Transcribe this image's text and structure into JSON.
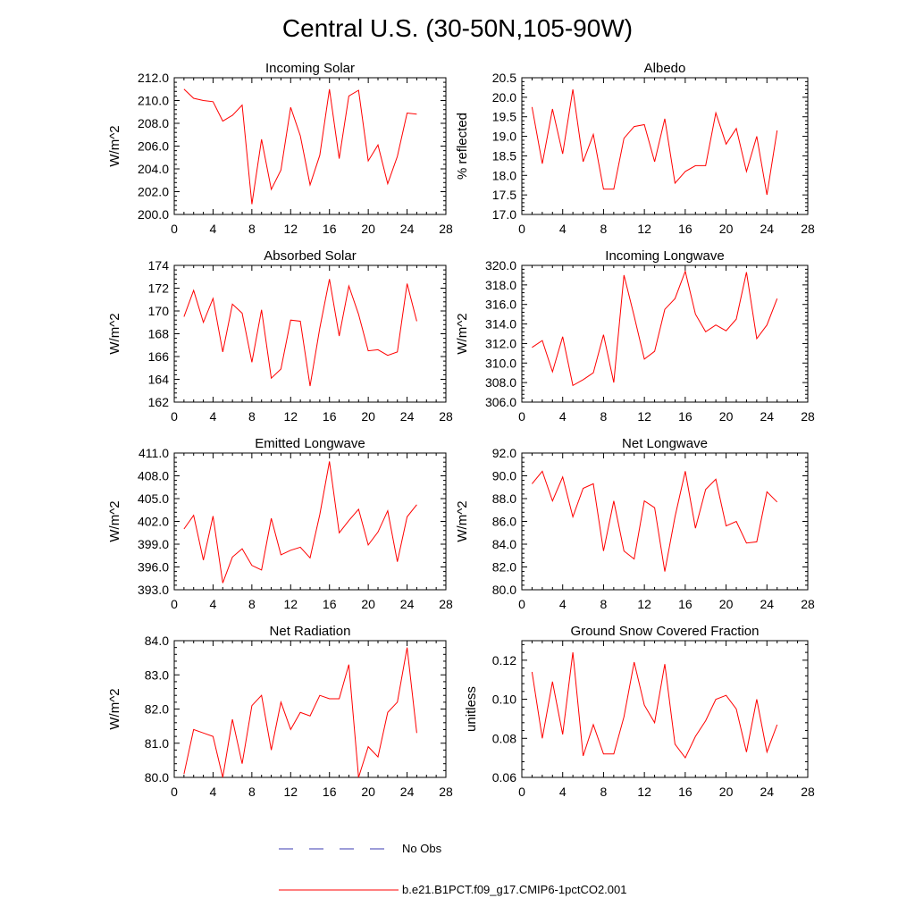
{
  "figure": {
    "title": "Central U.S. (30-50N,105-90W)"
  },
  "legend": {
    "items": [
      {
        "label": "No Obs",
        "style": "dashed",
        "color": "#3b3bb0"
      },
      {
        "label": "b.e21.B1PCT.f09_g17.CMIP6-1pctCO2.001",
        "style": "solid",
        "color": "#ff0000"
      }
    ]
  },
  "colors": {
    "series": "#ff0000",
    "axis": "#000000"
  },
  "chart_data": [
    {
      "type": "line",
      "title": "Incoming Solar",
      "xlabel": "",
      "ylabel": "W/m^2",
      "xlim": [
        0,
        28
      ],
      "ylim": [
        200,
        212
      ],
      "xticks": [
        0,
        4,
        8,
        12,
        16,
        20,
        24,
        28
      ],
      "yticks": [
        200,
        202,
        204,
        206,
        208,
        210,
        212
      ],
      "ytick_labels": [
        "200.0",
        "202.0",
        "204.0",
        "206.0",
        "208.0",
        "210.0",
        "212.0"
      ],
      "x": [
        1,
        2,
        3,
        4,
        5,
        6,
        7,
        8,
        9,
        10,
        11,
        12,
        13,
        14,
        15,
        16,
        17,
        18,
        19,
        20,
        21,
        22,
        23,
        24,
        25
      ],
      "series": [
        {
          "name": "b.e21.B1PCT.f09_g17.CMIP6-1pctCO2.001",
          "values": [
            211.0,
            210.2,
            210.0,
            209.9,
            208.2,
            208.7,
            209.6,
            200.9,
            206.6,
            202.2,
            203.9,
            209.4,
            206.9,
            202.6,
            205.2,
            211.0,
            204.9,
            210.4,
            210.9,
            204.7,
            206.1,
            202.7,
            205.1,
            208.9,
            208.8
          ]
        }
      ]
    },
    {
      "type": "line",
      "title": "Albedo",
      "xlabel": "",
      "ylabel": "% reflected",
      "xlim": [
        0,
        28
      ],
      "ylim": [
        17,
        20.5
      ],
      "xticks": [
        0,
        4,
        8,
        12,
        16,
        20,
        24,
        28
      ],
      "yticks": [
        17,
        17.5,
        18,
        18.5,
        19,
        19.5,
        20,
        20.5
      ],
      "ytick_labels": [
        "17.0",
        "17.5",
        "18.0",
        "18.5",
        "19.0",
        "19.5",
        "20.0",
        "20.5"
      ],
      "x": [
        1,
        2,
        3,
        4,
        5,
        6,
        7,
        8,
        9,
        10,
        11,
        12,
        13,
        14,
        15,
        16,
        17,
        18,
        19,
        20,
        21,
        22,
        23,
        24,
        25
      ],
      "series": [
        {
          "name": "b.e21.B1PCT.f09_g17.CMIP6-1pctCO2.001",
          "values": [
            19.75,
            18.3,
            19.7,
            18.55,
            20.2,
            18.35,
            19.05,
            17.65,
            17.65,
            18.95,
            19.25,
            19.3,
            18.35,
            19.45,
            17.8,
            18.1,
            18.25,
            18.25,
            19.6,
            18.8,
            19.2,
            18.1,
            19.0,
            17.5,
            19.15
          ]
        }
      ]
    },
    {
      "type": "line",
      "title": "Absorbed Solar",
      "xlabel": "",
      "ylabel": "W/m^2",
      "xlim": [
        0,
        28
      ],
      "ylim": [
        162,
        174
      ],
      "xticks": [
        0,
        4,
        8,
        12,
        16,
        20,
        24,
        28
      ],
      "yticks": [
        162,
        164,
        166,
        168,
        170,
        172,
        174
      ],
      "ytick_labels": [
        "162",
        "164",
        "166",
        "168",
        "170",
        "172",
        "174"
      ],
      "x": [
        1,
        2,
        3,
        4,
        5,
        6,
        7,
        8,
        9,
        10,
        11,
        12,
        13,
        14,
        15,
        16,
        17,
        18,
        19,
        20,
        21,
        22,
        23,
        24,
        25
      ],
      "series": [
        {
          "name": "b.e21.B1PCT.f09_g17.CMIP6-1pctCO2.001",
          "values": [
            169.5,
            171.8,
            169.0,
            171.1,
            166.4,
            170.6,
            169.8,
            165.5,
            170.1,
            164.1,
            164.9,
            169.2,
            169.1,
            163.4,
            168.5,
            172.8,
            167.8,
            172.2,
            169.7,
            166.5,
            166.6,
            166.1,
            166.4,
            172.4,
            169.1
          ]
        }
      ]
    },
    {
      "type": "line",
      "title": "Incoming Longwave",
      "xlabel": "",
      "ylabel": "W/m^2",
      "xlim": [
        0,
        28
      ],
      "ylim": [
        306,
        320
      ],
      "xticks": [
        0,
        4,
        8,
        12,
        16,
        20,
        24,
        28
      ],
      "yticks": [
        306,
        308,
        310,
        312,
        314,
        316,
        318,
        320
      ],
      "ytick_labels": [
        "306.0",
        "308.0",
        "310.0",
        "312.0",
        "314.0",
        "316.0",
        "318.0",
        "320.0"
      ],
      "x": [
        1,
        2,
        3,
        4,
        5,
        6,
        7,
        8,
        9,
        10,
        11,
        12,
        13,
        14,
        15,
        16,
        17,
        18,
        19,
        20,
        21,
        22,
        23,
        24,
        25
      ],
      "series": [
        {
          "name": "b.e21.B1PCT.f09_g17.CMIP6-1pctCO2.001",
          "values": [
            311.6,
            312.3,
            309.1,
            312.7,
            307.7,
            308.3,
            309.0,
            312.9,
            308.0,
            319.0,
            314.8,
            310.4,
            311.2,
            315.5,
            316.6,
            319.4,
            315.0,
            313.2,
            313.9,
            313.3,
            314.5,
            319.3,
            312.5,
            313.9,
            316.6
          ]
        }
      ]
    },
    {
      "type": "line",
      "title": "Emitted Longwave",
      "xlabel": "",
      "ylabel": "W/m^2",
      "xlim": [
        0,
        28
      ],
      "ylim": [
        393,
        411
      ],
      "xticks": [
        0,
        4,
        8,
        12,
        16,
        20,
        24,
        28
      ],
      "yticks": [
        393,
        396,
        399,
        402,
        405,
        408,
        411
      ],
      "ytick_labels": [
        "393.0",
        "396.0",
        "399.0",
        "402.0",
        "405.0",
        "408.0",
        "411.0"
      ],
      "x": [
        1,
        2,
        3,
        4,
        5,
        6,
        7,
        8,
        9,
        10,
        11,
        12,
        13,
        14,
        15,
        16,
        17,
        18,
        19,
        20,
        21,
        22,
        23,
        24,
        25
      ],
      "series": [
        {
          "name": "b.e21.B1PCT.f09_g17.CMIP6-1pctCO2.001",
          "values": [
            401.0,
            402.8,
            396.9,
            402.7,
            393.9,
            397.3,
            398.4,
            396.2,
            395.6,
            402.4,
            397.6,
            398.2,
            398.6,
            397.2,
            402.9,
            409.9,
            400.5,
            402.1,
            403.6,
            398.9,
            400.6,
            403.4,
            396.7,
            402.6,
            404.2
          ]
        }
      ]
    },
    {
      "type": "line",
      "title": "Net Longwave",
      "xlabel": "",
      "ylabel": "W/m^2",
      "xlim": [
        0,
        28
      ],
      "ylim": [
        80,
        92
      ],
      "xticks": [
        0,
        4,
        8,
        12,
        16,
        20,
        24,
        28
      ],
      "yticks": [
        80,
        82,
        84,
        86,
        88,
        90,
        92
      ],
      "ytick_labels": [
        "80.0",
        "82.0",
        "84.0",
        "86.0",
        "88.0",
        "90.0",
        "92.0"
      ],
      "x": [
        1,
        2,
        3,
        4,
        5,
        6,
        7,
        8,
        9,
        10,
        11,
        12,
        13,
        14,
        15,
        16,
        17,
        18,
        19,
        20,
        21,
        22,
        23,
        24,
        25
      ],
      "series": [
        {
          "name": "b.e21.B1PCT.f09_g17.CMIP6-1pctCO2.001",
          "values": [
            89.3,
            90.4,
            87.8,
            89.9,
            86.4,
            88.9,
            89.3,
            83.4,
            87.8,
            83.4,
            82.7,
            87.8,
            87.2,
            81.6,
            86.4,
            90.4,
            85.4,
            88.8,
            89.7,
            85.6,
            86.0,
            84.1,
            84.2,
            88.6,
            87.7
          ]
        }
      ]
    },
    {
      "type": "line",
      "title": "Net Radiation",
      "xlabel": "",
      "ylabel": "W/m^2",
      "xlim": [
        0,
        28
      ],
      "ylim": [
        80,
        84
      ],
      "xticks": [
        0,
        4,
        8,
        12,
        16,
        20,
        24,
        28
      ],
      "yticks": [
        80,
        81,
        82,
        83,
        84
      ],
      "ytick_labels": [
        "80.0",
        "81.0",
        "82.0",
        "83.0",
        "84.0"
      ],
      "x": [
        1,
        2,
        3,
        4,
        5,
        6,
        7,
        8,
        9,
        10,
        11,
        12,
        13,
        14,
        15,
        16,
        17,
        18,
        19,
        20,
        21,
        22,
        23,
        24,
        25
      ],
      "series": [
        {
          "name": "b.e21.B1PCT.f09_g17.CMIP6-1pctCO2.001",
          "values": [
            80.1,
            81.4,
            81.3,
            81.2,
            80.0,
            81.7,
            80.4,
            82.1,
            82.4,
            80.8,
            82.2,
            81.4,
            81.9,
            81.8,
            82.4,
            82.3,
            82.3,
            83.3,
            80.0,
            80.9,
            80.6,
            81.9,
            82.2,
            83.8,
            81.3
          ]
        }
      ]
    },
    {
      "type": "line",
      "title": "Ground Snow Covered Fraction",
      "xlabel": "",
      "ylabel": "unitless",
      "xlim": [
        0,
        28
      ],
      "ylim": [
        0.06,
        0.13
      ],
      "xticks": [
        0,
        4,
        8,
        12,
        16,
        20,
        24,
        28
      ],
      "yticks": [
        0.06,
        0.08,
        0.1,
        0.12
      ],
      "ytick_labels": [
        "0.06",
        "0.08",
        "0.10",
        "0.12"
      ],
      "x": [
        1,
        2,
        3,
        4,
        5,
        6,
        7,
        8,
        9,
        10,
        11,
        12,
        13,
        14,
        15,
        16,
        17,
        18,
        19,
        20,
        21,
        22,
        23,
        24,
        25
      ],
      "series": [
        {
          "name": "b.e21.B1PCT.f09_g17.CMIP6-1pctCO2.001",
          "values": [
            0.114,
            0.08,
            0.109,
            0.082,
            0.124,
            0.071,
            0.087,
            0.072,
            0.072,
            0.091,
            0.119,
            0.097,
            0.088,
            0.118,
            0.077,
            0.07,
            0.081,
            0.089,
            0.1,
            0.102,
            0.095,
            0.073,
            0.1,
            0.073,
            0.087
          ]
        }
      ]
    }
  ]
}
